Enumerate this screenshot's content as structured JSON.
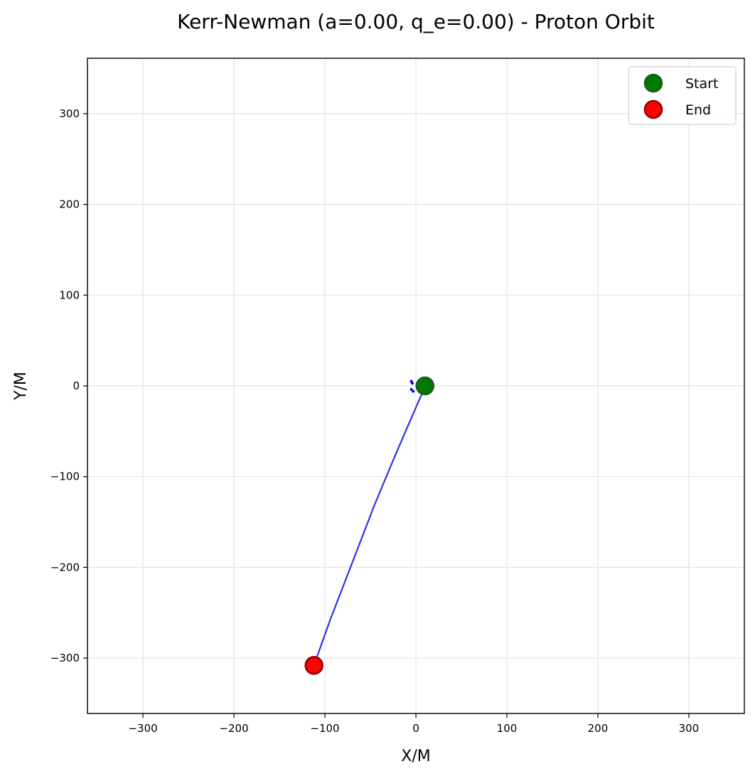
{
  "chart_data": {
    "type": "scatter",
    "title": "Kerr-Newman (a=0.00, q_e=0.00) - Proton Orbit",
    "xlabel": "X/M",
    "ylabel": "Y/M",
    "xlim": [
      -361,
      361
    ],
    "ylim": [
      -361,
      361
    ],
    "x_ticks": [
      -300,
      -200,
      -100,
      0,
      100,
      200,
      300
    ],
    "y_ticks": [
      -300,
      -200,
      -100,
      0,
      100,
      200,
      300
    ],
    "x_tick_labels": [
      "−300",
      "−200",
      "−100",
      "0",
      "100",
      "200",
      "300"
    ],
    "y_tick_labels": [
      "−300",
      "−200",
      "−100",
      "0",
      "100",
      "200",
      "300"
    ],
    "grid": true,
    "legend_position": "top-right",
    "trajectory": {
      "color": "#3030ee",
      "points": [
        [
          10,
          0
        ],
        [
          6,
          -10
        ],
        [
          0,
          -24
        ],
        [
          -10,
          -47
        ],
        [
          -25,
          -82
        ],
        [
          -45,
          -130
        ],
        [
          -70,
          -195
        ],
        [
          -95,
          -260
        ],
        [
          -112,
          -308
        ]
      ]
    },
    "horizon_marks": {
      "color": "#0000ff",
      "points": [
        [
          -5,
          5
        ],
        [
          -4,
          3
        ],
        [
          -5,
          -4
        ],
        [
          -3,
          -6
        ]
      ]
    },
    "markers": [
      {
        "name": "Start",
        "x": 10,
        "y": 0,
        "fill": "#007a00",
        "edge": "#1e5a1e"
      },
      {
        "name": "End",
        "x": -112,
        "y": -308,
        "fill": "#ff0000",
        "edge": "#8b0000"
      }
    ],
    "legend": [
      {
        "label": "Start",
        "fill": "#007a00",
        "edge": "#1e5a1e"
      },
      {
        "label": "End",
        "fill": "#ff0000",
        "edge": "#8b0000"
      }
    ]
  }
}
